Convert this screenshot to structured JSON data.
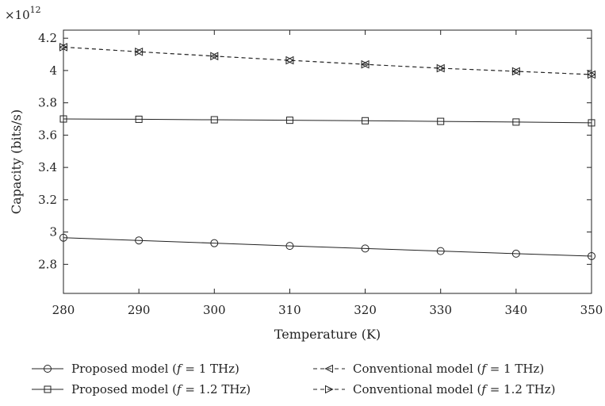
{
  "chart_data": {
    "type": "line",
    "xlabel": "Temperature (K)",
    "ylabel": "Capacity (bits/s)",
    "y_multiplier_label": "×10",
    "y_multiplier_exp": "12",
    "x": [
      280,
      290,
      300,
      310,
      320,
      330,
      340,
      350
    ],
    "xlim": [
      280,
      350
    ],
    "ylim": [
      2.62,
      4.25
    ],
    "xticks": [
      "280",
      "290",
      "300",
      "310",
      "320",
      "330",
      "340",
      "350"
    ],
    "yticks": [
      "2.8",
      "3",
      "3.2",
      "3.4",
      "3.6",
      "3.8",
      "4",
      "4.2"
    ],
    "ytick_values": [
      2.8,
      3.0,
      3.2,
      3.4,
      3.6,
      3.8,
      4.0,
      4.2
    ],
    "grid": false,
    "legend_position": "bottom",
    "series": [
      {
        "name_prefix": "Proposed model (",
        "name_var": "f",
        "name_suffix": " = 1 THz)",
        "marker": "circle",
        "dash": "solid",
        "values": [
          2.965,
          2.948,
          2.931,
          2.914,
          2.898,
          2.882,
          2.866,
          2.851
        ]
      },
      {
        "name_prefix": "Proposed model (",
        "name_var": "f",
        "name_suffix": " = 1.2 THz)",
        "marker": "square",
        "dash": "solid",
        "values": [
          3.7,
          3.698,
          3.695,
          3.692,
          3.689,
          3.685,
          3.681,
          3.676
        ]
      },
      {
        "name_prefix": "Conventional model (",
        "name_var": "f",
        "name_suffix": " = 1 THz)",
        "marker": "triangle-left",
        "dash": "dashed",
        "values": [
          4.145,
          4.116,
          4.089,
          4.063,
          4.038,
          4.014,
          3.995,
          3.975
        ]
      },
      {
        "name_prefix": "Conventional model (",
        "name_var": "f",
        "name_suffix": " = 1.2 THz)",
        "marker": "triangle-right",
        "dash": "dashed",
        "values": [
          4.145,
          4.116,
          4.089,
          4.063,
          4.038,
          4.014,
          3.995,
          3.975
        ]
      }
    ]
  }
}
